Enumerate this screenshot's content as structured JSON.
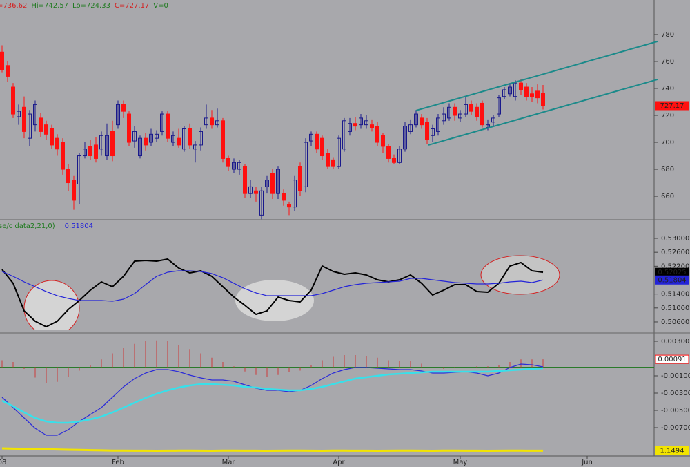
{
  "header": [
    {
      "text": "=736.62",
      "color": "#d42020"
    },
    {
      "text": "Hi=742.57",
      "color": "#1f7a1f"
    },
    {
      "text": "Lo=724.33",
      "color": "#1f7a1f"
    },
    {
      "text": "C=727.17",
      "color": "#d42020"
    },
    {
      "text": "V=0",
      "color": "#1f7a1f"
    }
  ],
  "chart_data": [
    {
      "type": "candlestick",
      "xlim": [
        -0.375,
        118.125
      ],
      "ylim": [
        642.6,
        805.6
      ],
      "yticks": [
        660,
        680,
        700,
        720,
        740,
        760,
        780
      ],
      "up_color": "#1a1a8c",
      "down_color": "#ff1010",
      "open": [
        767,
        757,
        741,
        719,
        726,
        703,
        713,
        718,
        713,
        710,
        703,
        700,
        680,
        672,
        669,
        690,
        697,
        698,
        695,
        690,
        708,
        713,
        728,
        721,
        701,
        690,
        703,
        700,
        703,
        708,
        721,
        700,
        703,
        695,
        710,
        695,
        698,
        713,
        718,
        713,
        716,
        688,
        680,
        680,
        682,
        662,
        664,
        646,
        667,
        677,
        662,
        662,
        654,
        652,
        682,
        667,
        701,
        706,
        703,
        692,
        687,
        682,
        695,
        708,
        714,
        713,
        713,
        713,
        712,
        705,
        697,
        688,
        685,
        695,
        708,
        713,
        718,
        715,
        705,
        708,
        716,
        718,
        726,
        718,
        721,
        728,
        726,
        729,
        711,
        715,
        721,
        734,
        736,
        734,
        744,
        741,
        736,
        738,
        736.62
      ],
      "high": [
        772,
        760,
        744,
        728,
        734,
        724,
        731,
        722,
        716,
        713,
        706,
        703,
        684,
        675,
        692,
        700,
        702,
        704,
        708,
        714,
        716,
        731,
        731,
        723,
        712,
        705,
        707,
        710,
        709,
        723,
        723,
        708,
        710,
        712,
        714,
        701,
        711,
        728,
        724,
        725,
        718,
        690,
        688,
        687,
        684,
        672,
        667,
        667,
        675,
        680,
        682,
        665,
        656,
        675,
        685,
        703,
        708,
        708,
        705,
        695,
        689,
        705,
        718,
        718,
        719,
        721,
        720,
        717,
        715,
        707,
        699,
        691,
        697,
        715,
        717,
        724,
        721,
        718,
        713,
        721,
        726,
        729,
        729,
        724,
        734,
        731,
        729,
        731,
        717,
        720,
        735,
        741,
        744,
        746,
        747,
        744,
        741,
        743,
        742.57
      ],
      "low": [
        752,
        745,
        718,
        713,
        703,
        697,
        708,
        704,
        702,
        695,
        690,
        676,
        664,
        650,
        654,
        688,
        687,
        685,
        690,
        687,
        686,
        710,
        718,
        697,
        696,
        688,
        694,
        697,
        700,
        705,
        700,
        697,
        696,
        693,
        695,
        685,
        694,
        710,
        710,
        711,
        685,
        679,
        677,
        676,
        659,
        659,
        656,
        643,
        662,
        658,
        658,
        653,
        646,
        649,
        660,
        663,
        697,
        692,
        687,
        680,
        680,
        680,
        693,
        705,
        709,
        710,
        710,
        708,
        697,
        692,
        685,
        684,
        684,
        693,
        706,
        711,
        710,
        699,
        700,
        705,
        713,
        716,
        716,
        715,
        719,
        720,
        716,
        711,
        709,
        712,
        719,
        732,
        734,
        731,
        735,
        731,
        730,
        729,
        724.33
      ],
      "close": [
        754,
        749,
        721,
        723,
        708,
        721,
        728,
        708,
        706,
        698,
        695,
        680,
        670,
        657,
        690,
        695,
        690,
        688,
        705,
        705,
        690,
        728,
        723,
        700,
        708,
        703,
        698,
        706,
        706,
        721,
        703,
        705,
        698,
        710,
        698,
        698,
        708,
        718,
        713,
        716,
        688,
        682,
        685,
        685,
        662,
        667,
        662,
        664,
        672,
        662,
        680,
        657,
        652,
        672,
        664,
        700,
        706,
        695,
        690,
        682,
        682,
        703,
        716,
        714,
        712,
        718,
        716,
        711,
        700,
        697,
        688,
        685,
        695,
        712,
        713,
        721,
        713,
        702,
        710,
        718,
        721,
        726,
        720,
        721,
        728,
        723,
        719,
        713,
        713,
        718,
        733,
        739,
        741,
        744,
        739,
        734,
        734,
        733,
        727.17
      ],
      "value_box": {
        "fill": "#ff1010",
        "stroke": "#ff1010",
        "text": "#ffffff"
      },
      "channel_color": "#1b8a8a",
      "channel": [
        {
          "x": [
            75,
            118.75
          ],
          "y": [
            723.6,
            774.9
          ]
        },
        {
          "x": [
            77.25,
            118.75
          ],
          "y": [
            698,
            746.7
          ]
        }
      ]
    },
    {
      "type": "line",
      "title": "se/c data2,21,0)",
      "title_color": "#1f7a1f",
      "xlim": [
        -0.375,
        118.125
      ],
      "ylim": [
        0.50282,
        0.53536
      ],
      "yticks": [
        {
          "value": 0.506,
          "label": "0.50600"
        },
        {
          "value": 0.51,
          "label": "0.51000"
        },
        {
          "value": 0.514,
          "label": "0.51400"
        },
        {
          "value": 0.522,
          "label": "0.52200"
        },
        {
          "value": 0.526,
          "label": "0.52600"
        },
        {
          "value": 0.53,
          "label": "0.53000"
        }
      ],
      "x": [
        0,
        2,
        4,
        6,
        8,
        10,
        12,
        14,
        16,
        18,
        20,
        22,
        24,
        26,
        28,
        30,
        32,
        34,
        36,
        38,
        40,
        42,
        44,
        46,
        48,
        50,
        52,
        54,
        56,
        58,
        60,
        62,
        64,
        66,
        68,
        70,
        72,
        74,
        76,
        78,
        80,
        82,
        84,
        86,
        88,
        90,
        92,
        94,
        96,
        98
      ],
      "series": [
        {
          "color": "#000000",
          "width": 2,
          "value_box": {
            "fill": "#000000",
            "stroke": "#000000",
            "text": "#ffffff"
          },
          "values": [
            0.52107,
            0.5171,
            0.50917,
            0.50619,
            0.5046,
            0.50619,
            0.50956,
            0.51214,
            0.51512,
            0.5175,
            0.51611,
            0.51909,
            0.52345,
            0.52365,
            0.52345,
            0.52405,
            0.52147,
            0.52008,
            0.52068,
            0.51909,
            0.51611,
            0.51314,
            0.51076,
            0.50818,
            0.50917,
            0.51314,
            0.51214,
            0.51175,
            0.51512,
            0.52206,
            0.52048,
            0.51968,
            0.52008,
            0.51948,
            0.5181,
            0.5175,
            0.5181,
            0.51948,
            0.5171,
            0.51373,
            0.51512,
            0.51671,
            0.51671,
            0.51472,
            0.51452,
            0.5171,
            0.52206,
            0.52306,
            0.52068,
            0.52025
          ]
        },
        {
          "color": "#2424d8",
          "width": 1.2,
          "in_title": true,
          "value_box": {
            "fill": "#2424d8",
            "stroke": "#2424d8",
            "text": "#ffffff"
          },
          "values": [
            0.52048,
            0.51909,
            0.5175,
            0.51611,
            0.51472,
            0.51353,
            0.51274,
            0.51214,
            0.51214,
            0.51214,
            0.51194,
            0.51254,
            0.51413,
            0.51671,
            0.51909,
            0.52028,
            0.52068,
            0.52068,
            0.52048,
            0.51988,
            0.51869,
            0.5171,
            0.51552,
            0.51433,
            0.51353,
            0.51353,
            0.51353,
            0.51353,
            0.51353,
            0.51413,
            0.51512,
            0.51611,
            0.51671,
            0.5171,
            0.5173,
            0.5175,
            0.5177,
            0.51849,
            0.51849,
            0.5181,
            0.5177,
            0.5173,
            0.5171,
            0.51691,
            0.51691,
            0.5171,
            0.5175,
            0.5177,
            0.5173,
            0.51804
          ]
        }
      ]
    },
    {
      "type": "combo",
      "xlim": [
        -0.375,
        118.125
      ],
      "ylim": [
        -0.01028,
        0.00396
      ],
      "y2lim": [
        1.14,
        1.36
      ],
      "zero_line_color": "#2a7a2a",
      "yticks": [
        {
          "value": -0.007,
          "label": "-0.00700"
        },
        {
          "value": -0.005,
          "label": "-0.00500"
        },
        {
          "value": -0.003,
          "label": "-0.00300"
        },
        {
          "value": -0.001,
          "label": "-0.00100"
        },
        {
          "value": 0.003,
          "label": "0.00300"
        }
      ],
      "xticks": [
        {
          "value": 0,
          "label": "08"
        },
        {
          "value": 21,
          "label": "Feb"
        },
        {
          "value": 41,
          "label": "Mar"
        },
        {
          "value": 61,
          "label": "Apr"
        },
        {
          "value": 83,
          "label": "May"
        },
        {
          "value": 106,
          "label": "Jun"
        }
      ],
      "x": [
        0,
        2,
        4,
        6,
        8,
        10,
        12,
        14,
        16,
        18,
        20,
        22,
        24,
        26,
        28,
        30,
        32,
        34,
        36,
        38,
        40,
        42,
        44,
        46,
        48,
        50,
        52,
        54,
        56,
        58,
        60,
        62,
        64,
        66,
        68,
        70,
        72,
        74,
        76,
        78,
        80,
        82,
        84,
        86,
        88,
        90,
        92,
        94,
        96,
        98
      ],
      "series": [
        {
          "type": "bar",
          "color": "#cc3a3a",
          "value_box": {
            "fill": "#ffffff",
            "stroke": "#ff1010",
            "text": "#ff1010"
          },
          "values": [
            0.0008,
            0.0006,
            -0.0002,
            -0.0012,
            -0.0018,
            -0.0017,
            -0.0011,
            -0.0004,
            0.0002,
            0.0009,
            0.0016,
            0.0022,
            0.0027,
            0.003,
            0.0031,
            0.003,
            0.0026,
            0.0021,
            0.0016,
            0.0011,
            0.0006,
            0.0001,
            -0.0005,
            -0.0009,
            -0.0011,
            -0.0009,
            -0.0006,
            -0.0004,
            0.0002,
            0.0008,
            0.0012,
            0.0014,
            0.0014,
            0.0013,
            0.0011,
            0.0008,
            0.0007,
            0.0007,
            0.0004,
            0,
            -0.0002,
            -0.0001,
            0,
            0.0001,
            0.0001,
            0.0002,
            0.0006,
            0.0009,
            0.0009,
            0.00091
          ]
        },
        {
          "type": "line",
          "color": "#2b2bd8",
          "width": 1.2,
          "values": [
            -0.00348,
            -0.00468,
            -0.00588,
            -0.00708,
            -0.00788,
            -0.00788,
            -0.00724,
            -0.00628,
            -0.00548,
            -0.00468,
            -0.00348,
            -0.00228,
            -0.00132,
            -0.00068,
            -0.00028,
            -0.00028,
            -0.00052,
            -0.00092,
            -0.00124,
            -0.00148,
            -0.00148,
            -0.00164,
            -0.00204,
            -0.00244,
            -0.00268,
            -0.00268,
            -0.00284,
            -0.00268,
            -0.00212,
            -0.00132,
            -0.00068,
            -0.00028,
            -4e-05,
            -4e-05,
            -0.00012,
            -0.0002,
            -0.00028,
            -0.00028,
            -0.00044,
            -0.00068,
            -0.00068,
            -0.0006,
            -0.00052,
            -0.00068,
            -0.001,
            -0.00068,
            -4e-05,
            0.00036,
            0.00028,
            4e-05
          ]
        },
        {
          "type": "line",
          "color": "#38e0ea",
          "width": 2.5,
          "values": [
            -0.00388,
            -0.00452,
            -0.00524,
            -0.00588,
            -0.00628,
            -0.00644,
            -0.00644,
            -0.00628,
            -0.00604,
            -0.00572,
            -0.00524,
            -0.00468,
            -0.00412,
            -0.00356,
            -0.00308,
            -0.00268,
            -0.00236,
            -0.00212,
            -0.00196,
            -0.00196,
            -0.00204,
            -0.00212,
            -0.00228,
            -0.00236,
            -0.00252,
            -0.0026,
            -0.00268,
            -0.00268,
            -0.00252,
            -0.00228,
            -0.00196,
            -0.00164,
            -0.00132,
            -0.00116,
            -0.001,
            -0.00084,
            -0.00076,
            -0.00068,
            -0.0006,
            -0.00052,
            -0.00052,
            -0.00052,
            -0.00052,
            -0.00052,
            -0.00052,
            -0.00044,
            -0.00036,
            -0.00028,
            -0.0002,
            -0.00012
          ]
        },
        {
          "type": "line",
          "axis": "y2",
          "color": "#f2e400",
          "width": 3,
          "value_box": {
            "fill": "#f2e400",
            "stroke": "#f2e400",
            "text": "#ffffff"
          },
          "values": [
            1.1536,
            1.1532,
            1.1528,
            1.1524,
            1.152,
            1.1516,
            1.1512,
            1.1508,
            1.1504,
            1.15,
            1.1496,
            1.1495,
            1.1494,
            1.1494,
            1.1493,
            1.1494,
            1.1495,
            1.1495,
            1.1494,
            1.1493,
            1.1496,
            1.1495,
            1.1494,
            1.1494,
            1.1493,
            1.1494,
            1.1495,
            1.1495,
            1.1494,
            1.1493,
            1.1496,
            1.1495,
            1.1494,
            1.1494,
            1.1493,
            1.1494,
            1.1495,
            1.1495,
            1.1494,
            1.1493,
            1.1496,
            1.1495,
            1.1494,
            1.1494,
            1.1493,
            1.1494,
            1.1495,
            1.1495,
            1.1494,
            1.1494
          ]
        }
      ]
    }
  ]
}
